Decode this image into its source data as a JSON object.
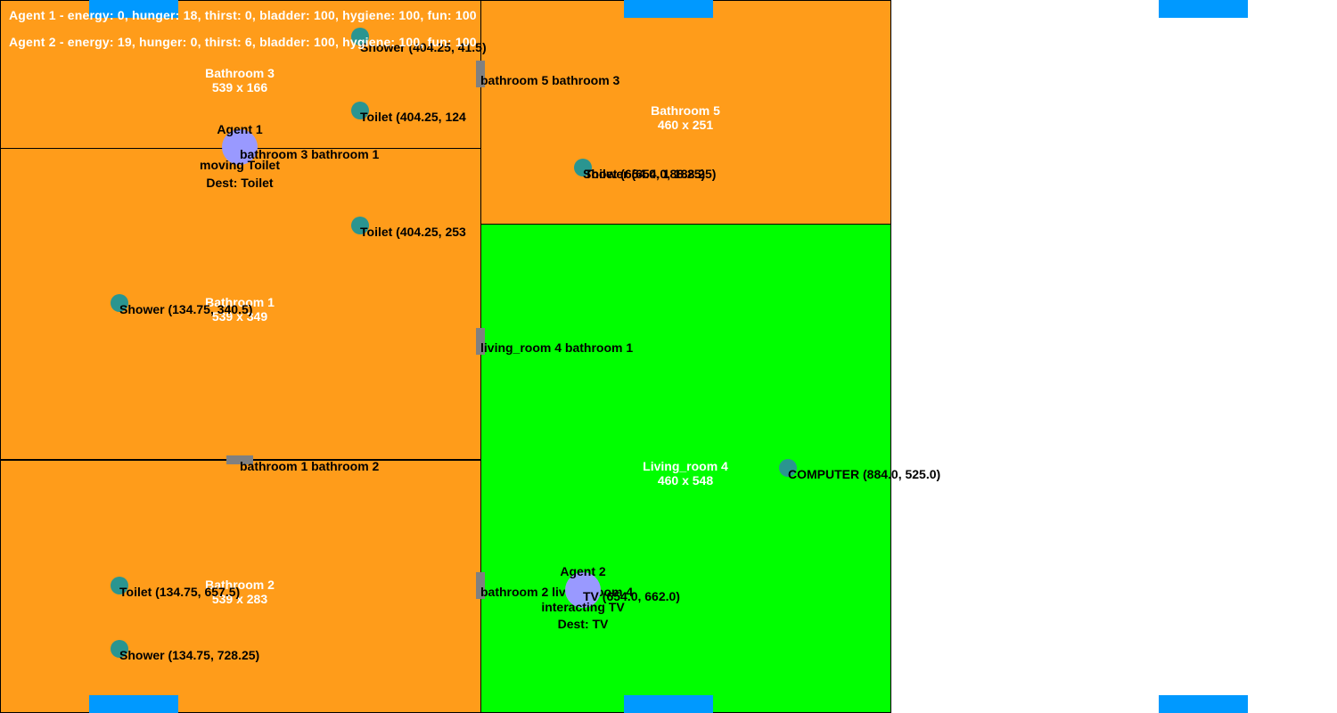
{
  "colors": {
    "bathroom": "#ff9c1a",
    "living_room": "#00ff00",
    "object": "#2a9590",
    "agent": "#9999ff",
    "window": "#0099ff",
    "door": "#808080"
  },
  "status": {
    "agent1": "Agent 1 - energy: 0, hunger: 18, thirst: 0, bladder: 100, hygiene: 100, fun: 100",
    "agent2": "Agent 2 - energy: 19, hunger: 0, thirst: 6, bladder: 100, hygiene: 100, fun: 100"
  },
  "rooms": {
    "bathroom3": {
      "name": "Bathroom 3",
      "size": "539 x 166"
    },
    "bathroom1": {
      "name": "Bathroom 1",
      "size": "539 x 349"
    },
    "bathroom2": {
      "name": "Bathroom 2",
      "size": "539 x 283"
    },
    "bathroom5": {
      "name": "Bathroom 5",
      "size": "460 x 251"
    },
    "living_room4": {
      "name": "Living_room 4",
      "size": "460 x 548"
    }
  },
  "doors": {
    "b5_b3": "bathroom 5 bathroom 3",
    "b3_b1": "bathroom 3 bathroom 1",
    "lr4_b1": "living_room 4 bathroom 1",
    "b1_b2": "bathroom 1 bathroom 2",
    "b2_lr4": "bathroom 2 living_room 4"
  },
  "objects": {
    "b3_shower": "Shower (404.25, 41.5)",
    "b3_toilet": "Toilet (404.25, 124",
    "b1_toilet": "Toilet (404.25, 253",
    "b1_shower": "Shower (134.75, 340.5)",
    "b2_toilet": "Toilet (134.75, 657.5)",
    "b2_shower": "Shower (134.75, 728.25)",
    "b5_shower": "Shower (654.0, 188.25)",
    "b5_toilet": "Toilet (654.0, 188.25)",
    "lr4_computer": "COMPUTER (884.0, 525.0)",
    "lr4_tv": "TV (654.0, 662.0)"
  },
  "agents": {
    "agent1": {
      "name": "Agent 1",
      "state": "moving Toilet",
      "dest": "Dest: Toilet"
    },
    "agent2": {
      "name": "Agent 2",
      "state": "interacting TV",
      "dest": "Dest: TV"
    }
  }
}
